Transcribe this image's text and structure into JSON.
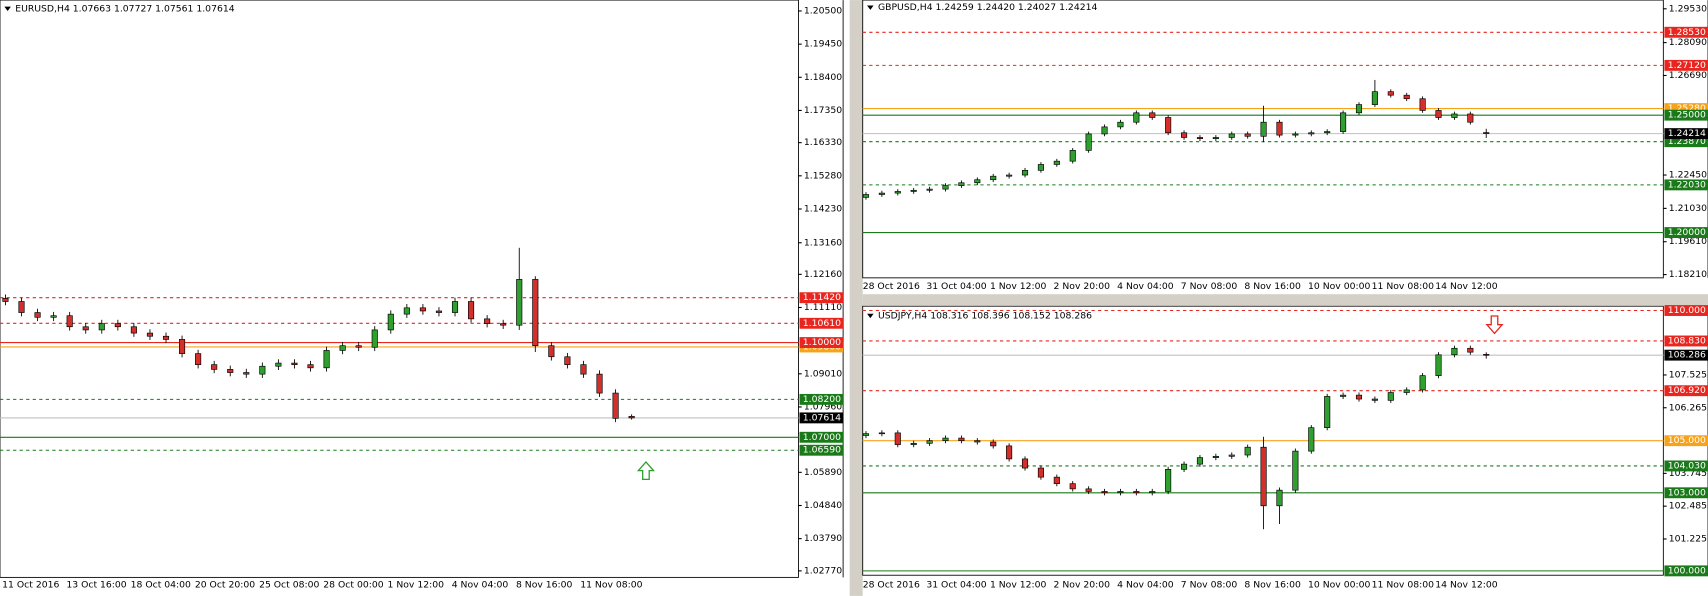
{
  "chart_data": [
    {
      "type": "candlestick",
      "title": "EURUSD,H4  1.07663 1.07727 1.07561 1.07614",
      "up_color": "#2fa02f",
      "down_color": "#d4302b",
      "categories": [
        "11 Oct 2016",
        null,
        null,
        null,
        "13 Oct 16:00",
        null,
        null,
        null,
        "18 Oct 04:00",
        null,
        null,
        null,
        "20 Oct 20:00",
        null,
        null,
        null,
        "25 Oct 08:00",
        null,
        null,
        null,
        "28 Oct 00:00",
        null,
        null,
        null,
        "1 Nov 12:00",
        null,
        null,
        null,
        "4 Nov 04:00",
        null,
        null,
        null,
        "8 Nov 16:00",
        null,
        null,
        null,
        "11 Nov 08:00",
        null,
        null,
        null
      ],
      "open": [
        1.114,
        1.113,
        1.1095,
        1.108,
        1.1085,
        1.105,
        1.104,
        1.106,
        1.105,
        1.103,
        1.102,
        1.101,
        1.0965,
        1.093,
        1.0915,
        1.0905,
        1.09,
        1.0925,
        1.0935,
        1.093,
        1.092,
        1.0975,
        1.099,
        1.0985,
        1.104,
        1.109,
        1.111,
        1.11,
        1.1095,
        1.113,
        1.1075,
        1.106,
        1.1055,
        1.12,
        1.099,
        1.0955,
        1.093,
        1.09,
        1.084,
        1.07663
      ],
      "high": [
        1.1152,
        1.1142,
        1.1107,
        1.1097,
        1.1097,
        1.1062,
        1.1072,
        1.1072,
        1.1062,
        1.1042,
        1.1032,
        1.1022,
        1.0977,
        1.0942,
        1.0927,
        1.0917,
        1.0937,
        1.0947,
        1.0947,
        1.0942,
        1.0987,
        1.1002,
        1.1002,
        1.1052,
        1.1102,
        1.1122,
        1.1122,
        1.1112,
        1.1142,
        1.1142,
        1.1087,
        1.1072,
        1.13,
        1.121,
        1.1002,
        1.0967,
        1.0942,
        1.0912,
        1.0852,
        1.07727
      ],
      "low": [
        1.1118,
        1.1083,
        1.1068,
        1.1068,
        1.1038,
        1.1028,
        1.1028,
        1.1038,
        1.1018,
        1.1008,
        1.0998,
        1.0953,
        1.0918,
        1.0903,
        1.0893,
        1.0888,
        1.0888,
        1.0913,
        1.0918,
        1.0908,
        1.0908,
        1.0963,
        1.0973,
        1.0973,
        1.1028,
        1.1078,
        1.1088,
        1.1083,
        1.1083,
        1.1063,
        1.1048,
        1.1043,
        1.104,
        1.097,
        1.0943,
        1.0918,
        1.0888,
        1.0828,
        1.0748,
        1.07561
      ],
      "close": [
        1.113,
        1.1095,
        1.108,
        1.1085,
        1.105,
        1.104,
        1.106,
        1.105,
        1.103,
        1.102,
        1.101,
        1.0965,
        1.093,
        1.0915,
        1.0905,
        1.09,
        1.0925,
        1.0935,
        1.093,
        1.092,
        1.0975,
        1.099,
        1.0985,
        1.104,
        1.109,
        1.111,
        1.11,
        1.1095,
        1.113,
        1.1075,
        1.106,
        1.1055,
        1.12,
        1.099,
        1.0955,
        1.093,
        1.09,
        1.084,
        1.076,
        1.07614
      ],
      "ylim": [
        1.02563,
        1.20845
      ],
      "yticks": [
        {
          "value": 1.205,
          "label": "1.20500"
        },
        {
          "value": 1.1945,
          "label": "1.19450"
        },
        {
          "value": 1.184,
          "label": "1.18400"
        },
        {
          "value": 1.1735,
          "label": "1.17350"
        },
        {
          "value": 1.1633,
          "label": "1.16330"
        },
        {
          "value": 1.1528,
          "label": "1.15280"
        },
        {
          "value": 1.1423,
          "label": "1.14230"
        },
        {
          "value": 1.1316,
          "label": "1.13160"
        },
        {
          "value": 1.1216,
          "label": "1.12160"
        },
        {
          "value": 1.1111,
          "label": "1.11110"
        },
        {
          "value": 1.0901,
          "label": "1.09010"
        },
        {
          "value": 1.0796,
          "label": "1.07960"
        },
        {
          "value": 1.0589,
          "label": "1.05890"
        },
        {
          "value": 1.0484,
          "label": "1.04840"
        },
        {
          "value": 1.0379,
          "label": "1.03790"
        },
        {
          "value": 1.0277,
          "label": "1.02770"
        }
      ],
      "levels": [
        {
          "value": 1.1142,
          "label": "1.11420",
          "color": "#e8261f",
          "style": "dashed"
        },
        {
          "value": 1.1061,
          "label": "1.10610",
          "color": "#e8261f",
          "style": "dashed"
        },
        {
          "value": 1.0986,
          "label": "1.09860",
          "color": "#f7a21b",
          "style": "solid"
        },
        {
          "value": 1.1,
          "label": "1.10000",
          "color": "#e8261f",
          "style": "solid"
        },
        {
          "value": 1.082,
          "label": "1.08200",
          "color": "#1a7a1a",
          "style": "dashed"
        },
        {
          "value": 1.07,
          "label": "1.07000",
          "color": "#1a7a1a",
          "style": "solid"
        },
        {
          "value": 1.0659,
          "label": "1.06590",
          "color": "#1a7a1a",
          "style": "dashed"
        }
      ],
      "last": {
        "value": 1.07614,
        "label": "1.07614"
      }
    },
    {
      "type": "candlestick",
      "title": "GBPUSD,H4  1.24259 1.24420 1.24027 1.24214",
      "up_color": "#2fa02f",
      "down_color": "#d4302b",
      "categories": [
        "28 Oct 2016",
        null,
        null,
        null,
        "31 Oct 04:00",
        null,
        null,
        null,
        "1 Nov 12:00",
        null,
        null,
        null,
        "2 Nov 20:00",
        null,
        null,
        null,
        "4 Nov 04:00",
        null,
        null,
        null,
        "7 Nov 08:00",
        null,
        null,
        null,
        "8 Nov 16:00",
        null,
        null,
        null,
        "10 Nov 00:00",
        null,
        null,
        null,
        "11 Nov 08:00",
        null,
        null,
        null,
        "14 Nov 12:00",
        null,
        null,
        null
      ],
      "open": [
        1.215,
        1.2162,
        1.2168,
        1.2175,
        1.218,
        1.2185,
        1.22,
        1.2212,
        1.2225,
        1.224,
        1.2245,
        1.2265,
        1.229,
        1.2304,
        1.235,
        1.242,
        1.245,
        1.247,
        1.251,
        1.249,
        1.2425,
        1.2405,
        1.24,
        1.2405,
        1.242,
        1.241,
        1.247,
        1.2415,
        1.242,
        1.2425,
        1.243,
        1.251,
        1.2545,
        1.26,
        1.2585,
        1.257,
        1.252,
        1.249,
        1.2505,
        1.24259
      ],
      "high": [
        1.2172,
        1.2178,
        1.2185,
        1.219,
        1.2195,
        1.221,
        1.2222,
        1.2235,
        1.225,
        1.2255,
        1.2275,
        1.23,
        1.2314,
        1.236,
        1.243,
        1.246,
        1.248,
        1.252,
        1.252,
        1.25,
        1.2435,
        1.2415,
        1.2415,
        1.243,
        1.243,
        1.254,
        1.248,
        1.243,
        1.2435,
        1.244,
        1.252,
        1.2555,
        1.265,
        1.261,
        1.2595,
        1.258,
        1.253,
        1.2515,
        1.2515,
        1.2442
      ],
      "low": [
        1.214,
        1.2152,
        1.2158,
        1.2165,
        1.217,
        1.2175,
        1.219,
        1.2202,
        1.2215,
        1.223,
        1.2235,
        1.2255,
        1.228,
        1.2294,
        1.234,
        1.241,
        1.244,
        1.246,
        1.248,
        1.2415,
        1.2395,
        1.239,
        1.239,
        1.2395,
        1.24,
        1.2385,
        1.2405,
        1.2405,
        1.241,
        1.2415,
        1.242,
        1.25,
        1.2535,
        1.2575,
        1.256,
        1.251,
        1.248,
        1.248,
        1.246,
        1.24027
      ],
      "close": [
        1.2162,
        1.2168,
        1.2175,
        1.218,
        1.2185,
        1.22,
        1.2212,
        1.2225,
        1.224,
        1.2245,
        1.2265,
        1.229,
        1.2304,
        1.235,
        1.242,
        1.245,
        1.247,
        1.251,
        1.249,
        1.2425,
        1.2405,
        1.24,
        1.2405,
        1.242,
        1.241,
        1.247,
        1.2415,
        1.242,
        1.2425,
        1.243,
        1.251,
        1.2545,
        1.26,
        1.2585,
        1.257,
        1.252,
        1.249,
        1.2505,
        1.247,
        1.24214
      ],
      "ylim": [
        1.18071,
        1.29901
      ],
      "yticks": [
        {
          "value": 1.2953,
          "label": "1.29530"
        },
        {
          "value": 1.2809,
          "label": "1.28090"
        },
        {
          "value": 1.2669,
          "label": "1.26690"
        },
        {
          "value": 1.2245,
          "label": "1.22450"
        },
        {
          "value": 1.2103,
          "label": "1.21030"
        },
        {
          "value": 1.1961,
          "label": "1.19610"
        },
        {
          "value": 1.1821,
          "label": "1.18210"
        }
      ],
      "levels": [
        {
          "value": 1.2853,
          "label": "1.28530",
          "color": "#e8261f",
          "style": "dashed"
        },
        {
          "value": 1.2712,
          "label": "1.27120",
          "color": "#e8261f",
          "style": "dashed"
        },
        {
          "value": 1.2528,
          "label": "1.25280",
          "color": "#f7a21b",
          "style": "solid"
        },
        {
          "value": 1.25,
          "label": "1.25000",
          "color": "#1a7a1a",
          "style": "solid"
        },
        {
          "value": 1.2387,
          "label": "1.23870",
          "color": "#1a7a1a",
          "style": "dashed"
        },
        {
          "value": 1.2203,
          "label": "1.22030",
          "color": "#1a7a1a",
          "style": "dashed"
        },
        {
          "value": 1.2,
          "label": "1.20000",
          "color": "#1a7a1a",
          "style": "solid"
        }
      ],
      "last": {
        "value": 1.24214,
        "label": "1.24214"
      }
    },
    {
      "type": "candlestick",
      "title": "USDJPY,H4  108.316 108.396 108.152 108.286",
      "up_color": "#2fa02f",
      "down_color": "#d4302b",
      "categories": [
        "28 Oct 2016",
        null,
        null,
        null,
        "31 Oct 04:00",
        null,
        null,
        null,
        "1 Nov 12:00",
        null,
        null,
        null,
        "2 Nov 20:00",
        null,
        null,
        null,
        "4 Nov 04:00",
        null,
        null,
        null,
        "7 Nov 08:00",
        null,
        null,
        null,
        "8 Nov 16:00",
        null,
        null,
        null,
        "10 Nov 00:00",
        null,
        null,
        null,
        "11 Nov 08:00",
        null,
        null,
        null,
        "14 Nov 12:00",
        null,
        null,
        null
      ],
      "open": [
        105.2,
        105.27,
        105.3,
        104.85,
        104.9,
        105.0,
        105.1,
        105.0,
        104.95,
        104.8,
        104.3,
        103.95,
        103.6,
        103.35,
        103.15,
        103.05,
        103.0,
        103.05,
        103.0,
        103.05,
        103.9,
        104.1,
        104.35,
        104.4,
        104.45,
        104.75,
        102.5,
        103.1,
        104.6,
        105.5,
        106.7,
        106.75,
        106.6,
        106.55,
        106.85,
        106.95,
        107.5,
        108.3,
        108.55,
        108.316
      ],
      "high": [
        105.37,
        105.4,
        105.4,
        105.0,
        105.1,
        105.2,
        105.2,
        105.1,
        105.05,
        104.9,
        104.4,
        104.05,
        103.7,
        103.45,
        103.25,
        103.15,
        103.15,
        103.15,
        103.15,
        104.0,
        104.2,
        104.45,
        104.5,
        104.55,
        104.85,
        105.15,
        103.2,
        104.7,
        105.6,
        106.8,
        106.85,
        106.85,
        106.7,
        106.95,
        107.05,
        107.6,
        108.4,
        108.65,
        108.65,
        108.396
      ],
      "low": [
        105.1,
        105.17,
        104.75,
        104.75,
        104.8,
        104.9,
        104.9,
        104.85,
        104.7,
        104.2,
        103.85,
        103.5,
        103.25,
        103.05,
        102.95,
        102.9,
        102.9,
        102.9,
        102.9,
        102.95,
        103.8,
        104.0,
        104.25,
        104.3,
        104.35,
        101.6,
        101.8,
        103.0,
        104.5,
        105.4,
        106.6,
        106.5,
        106.45,
        106.45,
        106.75,
        106.85,
        107.4,
        108.2,
        108.3,
        108.152
      ],
      "close": [
        105.27,
        105.3,
        104.85,
        104.9,
        105.0,
        105.1,
        105.0,
        104.95,
        104.8,
        104.3,
        103.95,
        103.6,
        103.35,
        103.15,
        103.05,
        103.0,
        103.05,
        103.0,
        103.05,
        103.9,
        104.1,
        104.35,
        104.4,
        104.45,
        104.75,
        102.5,
        103.1,
        104.6,
        105.5,
        106.7,
        106.75,
        106.6,
        106.55,
        106.85,
        106.95,
        107.5,
        108.3,
        108.55,
        108.4,
        108.286
      ],
      "ylim": [
        99.833,
        110.167
      ],
      "yticks": [
        107.525,
        106.265,
        103.745,
        102.485,
        101.225
      ],
      "levels": [
        {
          "value": 110,
          "label": "110.000",
          "color": "#e8261f",
          "style": "dashed"
        },
        {
          "value": 108.83,
          "label": "108.830",
          "color": "#e8261f",
          "style": "dashed"
        },
        {
          "value": 106.92,
          "label": "106.920",
          "color": "#e8261f",
          "style": "dashed"
        },
        {
          "value": 105,
          "label": "105.000",
          "color": "#f7a21b",
          "style": "solid"
        },
        {
          "value": 104.03,
          "label": "104.030",
          "color": "#1a7a1a",
          "style": "dashed"
        },
        {
          "value": 103,
          "label": "103.000",
          "color": "#1a7a1a",
          "style": "solid"
        },
        {
          "value": 100,
          "label": "100.000",
          "color": "#1a7a1a",
          "style": "solid"
        }
      ],
      "last": 108.286
    }
  ]
}
